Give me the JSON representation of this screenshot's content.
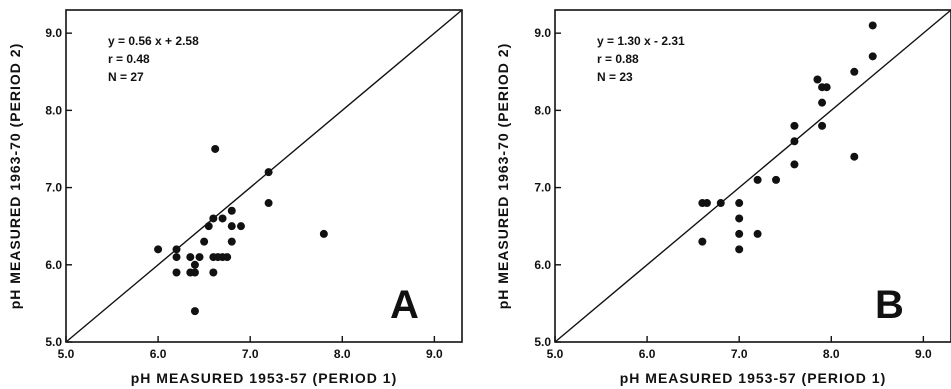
{
  "chart_data": [
    {
      "type": "scatter",
      "panel": "A",
      "xlabel": "pH MEASURED 1953-57 (PERIOD 1)",
      "ylabel": "pH MEASURED 1963-70 (PERIOD 2)",
      "xlim": [
        5.0,
        9.3
      ],
      "ylim": [
        5.0,
        9.3
      ],
      "xticks": [
        "5.0",
        "6.0",
        "7.0",
        "8.0",
        "9.0"
      ],
      "yticks": [
        "5.0",
        "6.0",
        "7.0",
        "8.0",
        "9.0"
      ],
      "stats": [
        "y = 0.56 x + 2.58",
        "r = 0.48",
        "N = 27"
      ],
      "reference_line": "y = x",
      "points": [
        {
          "x": 6.0,
          "y": 6.2
        },
        {
          "x": 6.2,
          "y": 6.2
        },
        {
          "x": 6.2,
          "y": 6.1
        },
        {
          "x": 6.2,
          "y": 5.9
        },
        {
          "x": 6.35,
          "y": 6.1
        },
        {
          "x": 6.35,
          "y": 5.9
        },
        {
          "x": 6.4,
          "y": 6.0
        },
        {
          "x": 6.4,
          "y": 5.9
        },
        {
          "x": 6.45,
          "y": 6.1
        },
        {
          "x": 6.4,
          "y": 5.4
        },
        {
          "x": 6.5,
          "y": 6.3
        },
        {
          "x": 6.55,
          "y": 6.5
        },
        {
          "x": 6.6,
          "y": 6.6
        },
        {
          "x": 6.6,
          "y": 6.1
        },
        {
          "x": 6.6,
          "y": 5.9
        },
        {
          "x": 6.62,
          "y": 7.5
        },
        {
          "x": 6.65,
          "y": 6.1
        },
        {
          "x": 6.7,
          "y": 6.6
        },
        {
          "x": 6.7,
          "y": 6.1
        },
        {
          "x": 6.75,
          "y": 6.1
        },
        {
          "x": 6.8,
          "y": 6.7
        },
        {
          "x": 6.8,
          "y": 6.5
        },
        {
          "x": 6.8,
          "y": 6.3
        },
        {
          "x": 6.9,
          "y": 6.5
        },
        {
          "x": 7.2,
          "y": 7.2
        },
        {
          "x": 7.2,
          "y": 6.8
        },
        {
          "x": 7.8,
          "y": 6.4
        }
      ]
    },
    {
      "type": "scatter",
      "panel": "B",
      "xlabel": "pH MEASURED 1953-57 (PERIOD 1)",
      "ylabel": "pH MEASURED 1963-70 (PERIOD 2)",
      "xlim": [
        5.0,
        9.3
      ],
      "ylim": [
        5.0,
        9.3
      ],
      "xticks": [
        "5.0",
        "6.0",
        "7.0",
        "8.0",
        "9.0"
      ],
      "yticks": [
        "5.0",
        "6.0",
        "7.0",
        "8.0",
        "9.0"
      ],
      "stats": [
        "y = 1.30 x - 2.31",
        "r = 0.88",
        "N = 23"
      ],
      "reference_line": "y = x",
      "points": [
        {
          "x": 6.6,
          "y": 6.8
        },
        {
          "x": 6.65,
          "y": 6.8
        },
        {
          "x": 6.6,
          "y": 6.3
        },
        {
          "x": 6.8,
          "y": 6.8
        },
        {
          "x": 7.0,
          "y": 6.8
        },
        {
          "x": 7.0,
          "y": 6.6
        },
        {
          "x": 7.0,
          "y": 6.4
        },
        {
          "x": 7.0,
          "y": 6.2
        },
        {
          "x": 7.2,
          "y": 7.1
        },
        {
          "x": 7.2,
          "y": 6.4
        },
        {
          "x": 7.4,
          "y": 7.1
        },
        {
          "x": 7.6,
          "y": 7.8
        },
        {
          "x": 7.6,
          "y": 7.6
        },
        {
          "x": 7.6,
          "y": 7.3
        },
        {
          "x": 7.85,
          "y": 8.4
        },
        {
          "x": 7.9,
          "y": 8.3
        },
        {
          "x": 7.95,
          "y": 8.3
        },
        {
          "x": 7.9,
          "y": 8.1
        },
        {
          "x": 7.9,
          "y": 7.8
        },
        {
          "x": 8.25,
          "y": 8.5
        },
        {
          "x": 8.25,
          "y": 7.4
        },
        {
          "x": 8.45,
          "y": 9.1
        },
        {
          "x": 8.45,
          "y": 8.7
        }
      ]
    }
  ]
}
